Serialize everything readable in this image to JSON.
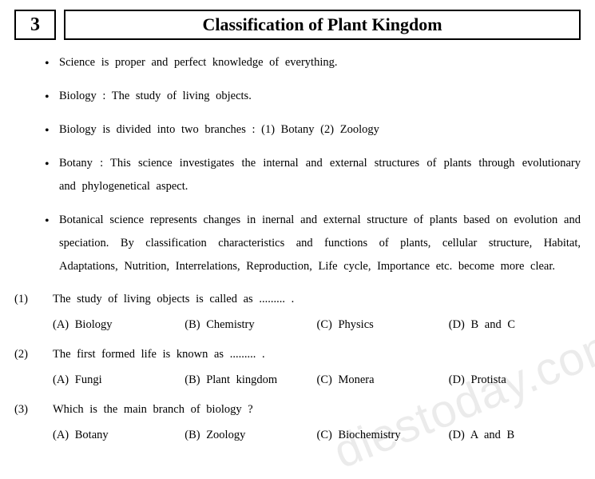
{
  "chapter_number": "3",
  "chapter_title": "Classification of Plant Kingdom",
  "bullets": [
    "Science  is  proper  and  perfect  knowledge  of  everything.",
    "Biology  :  The  study  of  living  objects.",
    "Biology  is  divided  into  two  branches  :  (1)  Botany  (2)  Zoology",
    "Botany  :  This  science  investigates  the  internal  and  external  structures  of  plants  through evolutionary  and  phylogenetical  aspect.",
    "Botanical  science  represents  changes  in  inernal  and  external  structure  of  plants  based  on evolution  and  speciation.  By  classification  characteristics  and  functions  of  plants,  cellular structure,  Habitat,  Adaptations,  Nutrition,  Interrelations,  Reproduction,  Life  cycle,  Importance etc.  become  more  clear."
  ],
  "questions": [
    {
      "num": "(1)",
      "text": "The  study  of  living  objects  is  called  as  .........  .",
      "options": [
        "(A)  Biology",
        "(B)  Chemistry",
        "(C)  Physics",
        "(D)  B  and  C"
      ]
    },
    {
      "num": "(2)",
      "text": "The  first  formed  life  is  known  as  .........  .",
      "options": [
        "(A)  Fungi",
        "(B)  Plant  kingdom",
        "(C)  Monera",
        "(D)  Protista"
      ]
    },
    {
      "num": "(3)",
      "text": "Which  is  the  main  branch  of  biology  ?",
      "options": [
        "(A)  Botany",
        "(B)  Zoology",
        "(C)  Biochemistry",
        "(D)  A  and  B"
      ]
    }
  ],
  "watermark": "diestoday.com"
}
